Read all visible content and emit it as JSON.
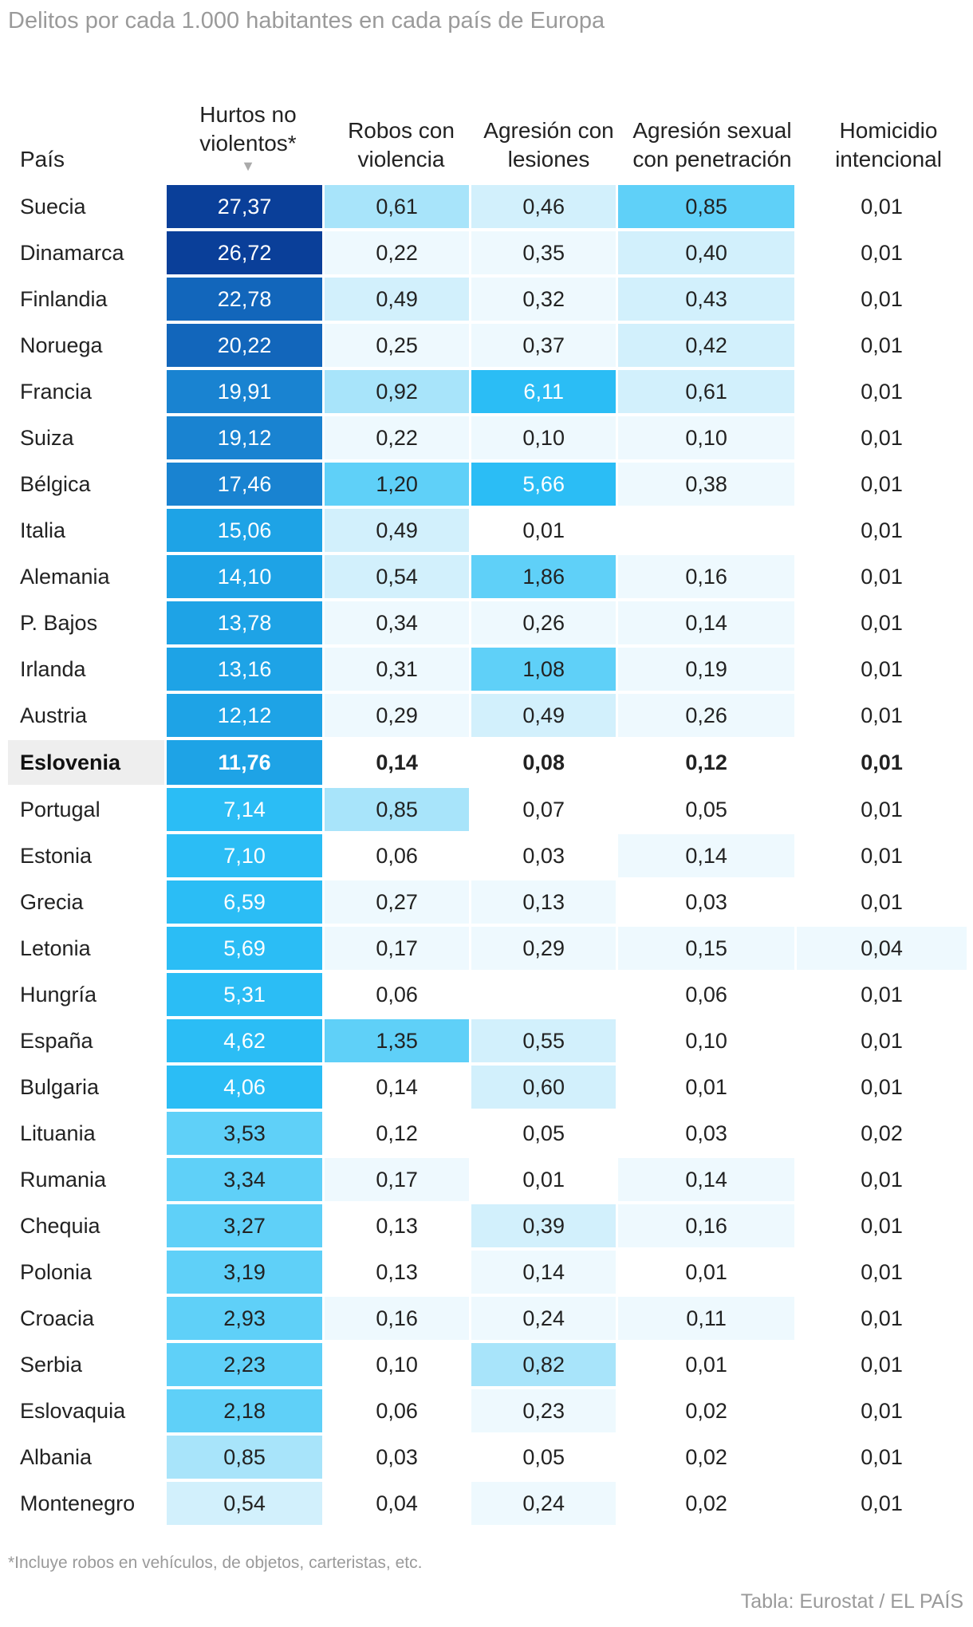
{
  "title": "Delitos por cada 1.000 habitantes en cada país de Europa",
  "columns": {
    "country": "País",
    "hurtos": "Hurtos no violentos*",
    "robos": "Robos con violencia",
    "agresion": "Agresión con lesiones",
    "sexual": "Agresión sexual con penetración",
    "homicidio": "Homicidio intencional"
  },
  "sort_icon": "▼",
  "colors": {
    "scale": [
      "#ffffff",
      "#eef9fe",
      "#d2f0fc",
      "#a8e4fa",
      "#5fd0f8",
      "#2bbdf5",
      "#1ea3e6",
      "#1983d1",
      "#1266bb",
      "#0a3f99"
    ],
    "highlight_row": "#eeeeee"
  },
  "chart_data": {
    "type": "table",
    "title": "Delitos por cada 1.000 habitantes en cada país de Europa",
    "columns": [
      "País",
      "Hurtos no violentos*",
      "Robos con violencia",
      "Agresión con lesiones",
      "Agresión sexual con penetración",
      "Homicidio intencional"
    ],
    "highlighted_row": "Eslovenia",
    "rows": [
      {
        "pais": "Suecia",
        "hurtos": "27,37",
        "robos": "0,61",
        "agresion": "0,46",
        "sexual": "0,85",
        "homicidio": "0,01",
        "sh": [
          9,
          3,
          2,
          4,
          0
        ]
      },
      {
        "pais": "Dinamarca",
        "hurtos": "26,72",
        "robos": "0,22",
        "agresion": "0,35",
        "sexual": "0,40",
        "homicidio": "0,01",
        "sh": [
          9,
          1,
          1,
          2,
          0
        ]
      },
      {
        "pais": "Finlandia",
        "hurtos": "22,78",
        "robos": "0,49",
        "agresion": "0,32",
        "sexual": "0,43",
        "homicidio": "0,01",
        "sh": [
          8,
          2,
          1,
          2,
          0
        ]
      },
      {
        "pais": "Noruega",
        "hurtos": "20,22",
        "robos": "0,25",
        "agresion": "0,37",
        "sexual": "0,42",
        "homicidio": "0,01",
        "sh": [
          8,
          1,
          1,
          2,
          0
        ]
      },
      {
        "pais": "Francia",
        "hurtos": "19,91",
        "robos": "0,92",
        "agresion": "6,11",
        "sexual": "0,61",
        "homicidio": "0,01",
        "sh": [
          7,
          3,
          5,
          2,
          0
        ]
      },
      {
        "pais": "Suiza",
        "hurtos": "19,12",
        "robos": "0,22",
        "agresion": "0,10",
        "sexual": "0,10",
        "homicidio": "0,01",
        "sh": [
          7,
          1,
          1,
          1,
          0
        ]
      },
      {
        "pais": "Bélgica",
        "hurtos": "17,46",
        "robos": "1,20",
        "agresion": "5,66",
        "sexual": "0,38",
        "homicidio": "0,01",
        "sh": [
          7,
          4,
          5,
          1,
          0
        ]
      },
      {
        "pais": "Italia",
        "hurtos": "15,06",
        "robos": "0,49",
        "agresion": "0,01",
        "sexual": "",
        "homicidio": "0,01",
        "sh": [
          6,
          2,
          0,
          0,
          0
        ]
      },
      {
        "pais": "Alemania",
        "hurtos": "14,10",
        "robos": "0,54",
        "agresion": "1,86",
        "sexual": "0,16",
        "homicidio": "0,01",
        "sh": [
          6,
          2,
          4,
          1,
          0
        ]
      },
      {
        "pais": "P. Bajos",
        "hurtos": "13,78",
        "robos": "0,34",
        "agresion": "0,26",
        "sexual": "0,14",
        "homicidio": "0,01",
        "sh": [
          6,
          1,
          1,
          1,
          0
        ]
      },
      {
        "pais": "Irlanda",
        "hurtos": "13,16",
        "robos": "0,31",
        "agresion": "1,08",
        "sexual": "0,19",
        "homicidio": "0,01",
        "sh": [
          6,
          1,
          4,
          1,
          0
        ]
      },
      {
        "pais": "Austria",
        "hurtos": "12,12",
        "robos": "0,29",
        "agresion": "0,49",
        "sexual": "0,26",
        "homicidio": "0,01",
        "sh": [
          6,
          1,
          2,
          1,
          0
        ]
      },
      {
        "pais": "Eslovenia",
        "hurtos": "11,76",
        "robos": "0,14",
        "agresion": "0,08",
        "sexual": "0,12",
        "homicidio": "0,01",
        "sh": [
          6,
          0,
          0,
          0,
          0
        ]
      },
      {
        "pais": "Portugal",
        "hurtos": "7,14",
        "robos": "0,85",
        "agresion": "0,07",
        "sexual": "0,05",
        "homicidio": "0,01",
        "sh": [
          5,
          3,
          0,
          0,
          0
        ]
      },
      {
        "pais": "Estonia",
        "hurtos": "7,10",
        "robos": "0,06",
        "agresion": "0,03",
        "sexual": "0,14",
        "homicidio": "0,01",
        "sh": [
          5,
          0,
          0,
          1,
          0
        ]
      },
      {
        "pais": "Grecia",
        "hurtos": "6,59",
        "robos": "0,27",
        "agresion": "0,13",
        "sexual": "0,03",
        "homicidio": "0,01",
        "sh": [
          5,
          1,
          1,
          0,
          0
        ]
      },
      {
        "pais": "Letonia",
        "hurtos": "5,69",
        "robos": "0,17",
        "agresion": "0,29",
        "sexual": "0,15",
        "homicidio": "0,04",
        "sh": [
          5,
          1,
          1,
          1,
          1
        ]
      },
      {
        "pais": "Hungría",
        "hurtos": "5,31",
        "robos": "0,06",
        "agresion": "",
        "sexual": "0,06",
        "homicidio": "0,01",
        "sh": [
          5,
          0,
          0,
          0,
          0
        ]
      },
      {
        "pais": "España",
        "hurtos": "4,62",
        "robos": "1,35",
        "agresion": "0,55",
        "sexual": "0,10",
        "homicidio": "0,01",
        "sh": [
          5,
          4,
          2,
          0,
          0
        ]
      },
      {
        "pais": "Bulgaria",
        "hurtos": "4,06",
        "robos": "0,14",
        "agresion": "0,60",
        "sexual": "0,01",
        "homicidio": "0,01",
        "sh": [
          5,
          0,
          2,
          0,
          0
        ]
      },
      {
        "pais": "Lituania",
        "hurtos": "3,53",
        "robos": "0,12",
        "agresion": "0,05",
        "sexual": "0,03",
        "homicidio": "0,02",
        "sh": [
          4,
          0,
          0,
          0,
          0
        ]
      },
      {
        "pais": "Rumania",
        "hurtos": "3,34",
        "robos": "0,17",
        "agresion": "0,01",
        "sexual": "0,14",
        "homicidio": "0,01",
        "sh": [
          4,
          1,
          0,
          1,
          0
        ]
      },
      {
        "pais": "Chequia",
        "hurtos": "3,27",
        "robos": "0,13",
        "agresion": "0,39",
        "sexual": "0,16",
        "homicidio": "0,01",
        "sh": [
          4,
          0,
          2,
          1,
          0
        ]
      },
      {
        "pais": "Polonia",
        "hurtos": "3,19",
        "robos": "0,13",
        "agresion": "0,14",
        "sexual": "0,01",
        "homicidio": "0,01",
        "sh": [
          4,
          0,
          1,
          0,
          0
        ]
      },
      {
        "pais": "Croacia",
        "hurtos": "2,93",
        "robos": "0,16",
        "agresion": "0,24",
        "sexual": "0,11",
        "homicidio": "0,01",
        "sh": [
          4,
          1,
          1,
          1,
          0
        ]
      },
      {
        "pais": "Serbia",
        "hurtos": "2,23",
        "robos": "0,10",
        "agresion": "0,82",
        "sexual": "0,01",
        "homicidio": "0,01",
        "sh": [
          4,
          0,
          3,
          0,
          0
        ]
      },
      {
        "pais": "Eslovaquia",
        "hurtos": "2,18",
        "robos": "0,06",
        "agresion": "0,23",
        "sexual": "0,02",
        "homicidio": "0,01",
        "sh": [
          4,
          0,
          1,
          0,
          0
        ]
      },
      {
        "pais": "Albania",
        "hurtos": "0,85",
        "robos": "0,03",
        "agresion": "0,05",
        "sexual": "0,02",
        "homicidio": "0,01",
        "sh": [
          3,
          0,
          0,
          0,
          0
        ]
      },
      {
        "pais": "Montenegro",
        "hurtos": "0,54",
        "robos": "0,04",
        "agresion": "0,24",
        "sexual": "0,02",
        "homicidio": "0,01",
        "sh": [
          2,
          0,
          1,
          0,
          0
        ]
      }
    ]
  },
  "footnote": "*Incluye robos en vehículos, de objetos, carteristas, etc.",
  "source": "Tabla: Eurostat / EL PAÍS"
}
